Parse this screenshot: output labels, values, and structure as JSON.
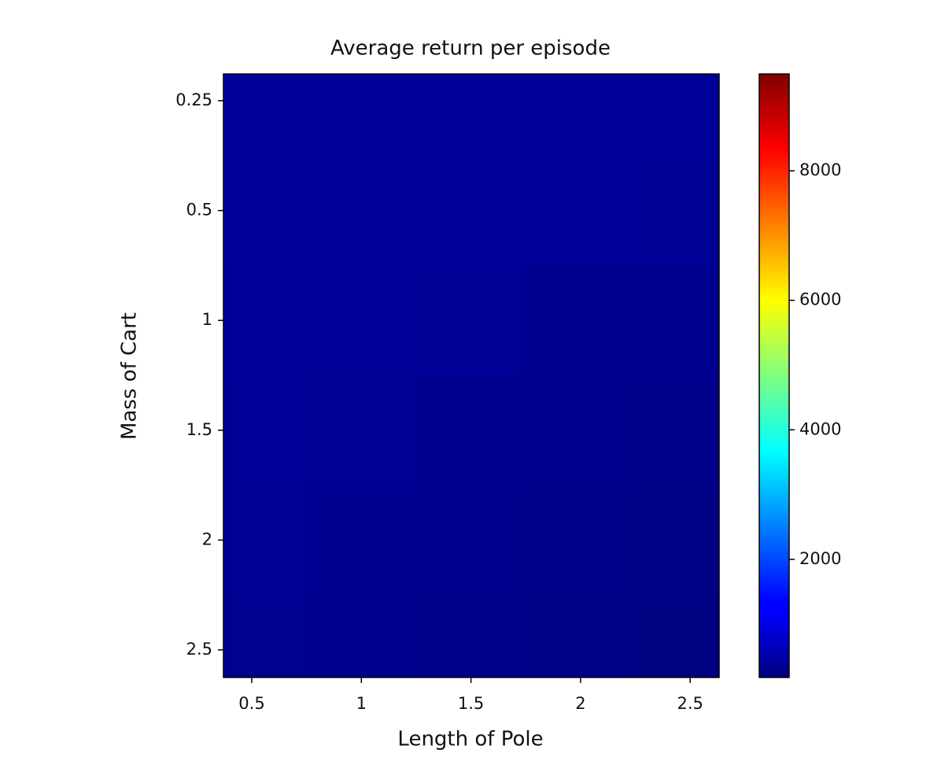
{
  "chart_data": {
    "type": "heatmap",
    "title": "Average return per episode",
    "x_label": "Length of Pole",
    "y_label": "Mass of Cart",
    "x_categories": [
      "0.5",
      "1",
      "1.5",
      "2",
      "2.5"
    ],
    "y_categories": [
      "0.25",
      "0.5",
      "1",
      "1.5",
      "2",
      "2.5"
    ],
    "values": [
      [
        430,
        430,
        430,
        420,
        410
      ],
      [
        420,
        410,
        400,
        380,
        360
      ],
      [
        400,
        380,
        360,
        330,
        310
      ],
      [
        380,
        360,
        320,
        300,
        280
      ],
      [
        360,
        330,
        290,
        260,
        230
      ],
      [
        340,
        310,
        270,
        240,
        200
      ]
    ],
    "colormap": "jet",
    "colorbar": {
      "lim": [
        176,
        9495
      ],
      "ticks": [
        2000,
        4000,
        6000,
        8000
      ]
    }
  }
}
